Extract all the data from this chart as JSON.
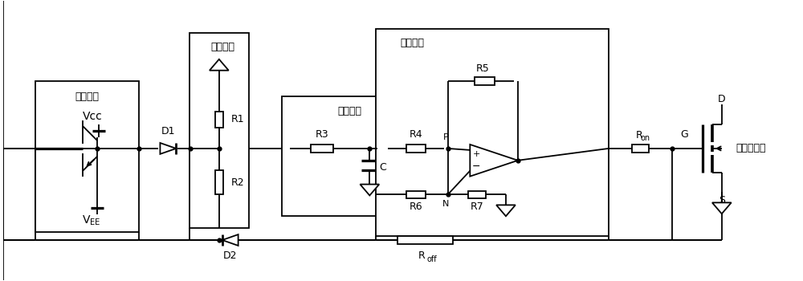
{
  "figsize": [
    10.0,
    3.5
  ],
  "dpi": 100,
  "bg_color": "#ffffff",
  "lw": 1.3,
  "labels": {
    "drive_module": "驱动模块",
    "vcc": "Vcc",
    "vee": "V",
    "vee_sub": "EE",
    "fenya": "分压模块",
    "jifen": "积分模块",
    "chafen": "差分模块",
    "R1": "R1",
    "R2": "R2",
    "R3": "R3",
    "C": "C",
    "R4": "R4",
    "R5": "R5",
    "R6": "R6",
    "R7": "R7",
    "D1": "D1",
    "D2": "D2",
    "Ron": "R",
    "Ron_sub": "on",
    "Roff": "R",
    "Roff_sub": "off",
    "P": "P",
    "N": "N",
    "D": "D",
    "G": "G",
    "S": "S",
    "sic": "碳化硅器件"
  }
}
